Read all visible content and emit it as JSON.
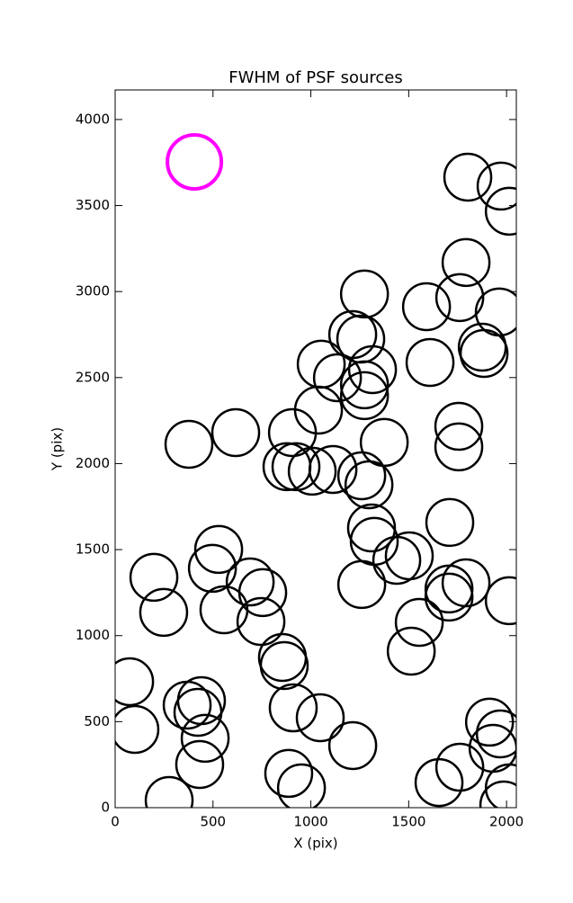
{
  "chart_data": {
    "type": "scatter",
    "title": "FWHM of PSF sources",
    "x_label": "X (pix)",
    "y_label": "Y (pix)",
    "xlim": [
      0,
      2050
    ],
    "ylim": [
      0,
      4172
    ],
    "xticks": [
      0,
      500,
      1000,
      1500,
      2000
    ],
    "yticks": [
      0,
      500,
      1000,
      1500,
      2000,
      2500,
      3000,
      3500,
      4000
    ],
    "grid": false,
    "series": [
      {
        "color": "#000000",
        "x": [
          1802,
          1972,
          2014,
          1793,
          1761,
          1963,
          1591,
          1274,
          1214,
          1255,
          1315,
          1876,
          1885,
          1053,
          1136,
          1274,
          1274,
          1039,
          1609,
          1756,
          1756,
          1375,
          616,
          377,
          906,
          878,
          924,
          1007,
          1113,
          1260,
          1297,
          1310,
          1324,
          1439,
          1503,
          1710,
          529,
          497,
          198,
          248,
          690,
          754,
          556,
          745,
          1260,
          1706,
          1793,
          1706,
          2014,
          1554,
          1513,
          855,
          864,
          74,
          101,
          910,
          1048,
          368,
          441,
          423,
          460,
          432,
          1214,
          887,
          952,
          276,
          1655,
          1761,
          1913,
          1968,
          1931,
          2014,
          1986
        ],
        "values": [
          3665,
          3613,
          3467,
          3169,
          2965,
          2881,
          2912,
          2986,
          2750,
          2724,
          2546,
          2677,
          2640,
          2578,
          2499,
          2458,
          2395,
          2311,
          2588,
          2217,
          2097,
          2123,
          2180,
          2112,
          2180,
          1982,
          1982,
          1956,
          1966,
          1929,
          1877,
          1626,
          1548,
          1438,
          1464,
          1658,
          1501,
          1391,
          1339,
          1135,
          1312,
          1250,
          1150,
          1082,
          1297,
          1271,
          1307,
          1224,
          1203,
          1077,
          910,
          873,
          826,
          732,
          455,
          580,
          523,
          596,
          622,
          554,
          403,
          251,
          361,
          199,
          115,
          42,
          146,
          235,
          497,
          429,
          345,
          115,
          16
        ]
      },
      {
        "color": "#ff00ff",
        "x": [
          405
        ],
        "values": [
          3754
        ]
      }
    ]
  }
}
